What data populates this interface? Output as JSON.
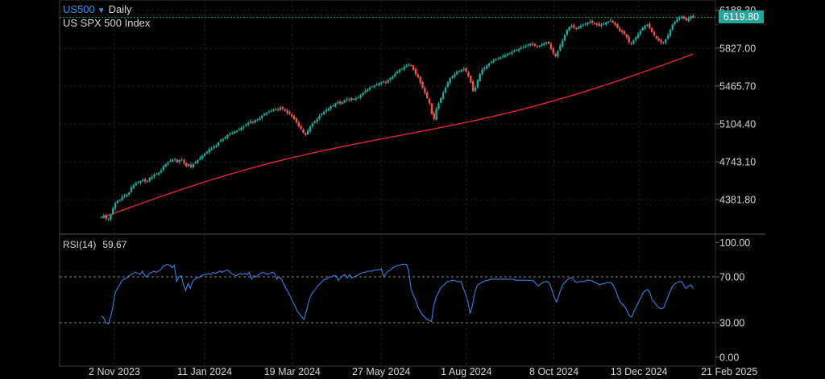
{
  "header": {
    "symbol": "US500",
    "timeframe": "Daily",
    "instrument_name": "US SPX 500 Index",
    "last_price": "6119.80"
  },
  "rsi_panel": {
    "label": "RSI(14)",
    "value": "59.67"
  },
  "colors": {
    "background": "#000000",
    "up": "#26a69a",
    "down": "#ef5350",
    "ma": "#e3262f",
    "rsi": "#3d7fe0",
    "symbol": "#3d8ef0"
  },
  "chart_data": [
    {
      "type": "candlestick",
      "title": "US SPX 500 Index",
      "y_tick_labels": [
        "6188.30",
        "5827.00",
        "5465.70",
        "5104.40",
        "4743.10",
        "4381.80"
      ],
      "ylim": [
        4240,
        6240
      ],
      "x_tick_labels": [
        "2 Nov 2023",
        "11 Jan 2024",
        "19 Mar 2024",
        "27 May 2024",
        "1 Aug 2024",
        "8 Oct 2024",
        "13 Dec 2024",
        "21 Feb 2025"
      ],
      "close_series": {
        "start": "2023-10-23",
        "end": "2025-01-24",
        "values": [
          4217,
          4230,
          4200,
          4195,
          4240,
          4300,
          4350,
          4370,
          4380,
          4410,
          4420,
          4430,
          4450,
          4500,
          4520,
          4540,
          4550,
          4560,
          4570,
          4555,
          4560,
          4590,
          4600,
          4620,
          4630,
          4640,
          4660,
          4700,
          4720,
          4740,
          4750,
          4760,
          4770,
          4740,
          4760,
          4765,
          4730,
          4700,
          4720,
          4690,
          4720,
          4740,
          4760,
          4780,
          4800,
          4820,
          4840,
          4860,
          4870,
          4890,
          4900,
          4930,
          4950,
          4960,
          4980,
          5000,
          5010,
          5020,
          5030,
          5040,
          5050,
          5070,
          5080,
          5100,
          5110,
          5130,
          5120,
          5140,
          5150,
          5160,
          5180,
          5200,
          5210,
          5220,
          5230,
          5240,
          5250,
          5240,
          5260,
          5250,
          5230,
          5210,
          5200,
          5180,
          5150,
          5120,
          5080,
          5060,
          5020,
          5000,
          5040,
          5080,
          5110,
          5130,
          5150,
          5180,
          5200,
          5220,
          5240,
          5250,
          5270,
          5280,
          5300,
          5310,
          5300,
          5310,
          5330,
          5340,
          5330,
          5350,
          5340,
          5350,
          5360,
          5380,
          5400,
          5420,
          5430,
          5450,
          5460,
          5470,
          5480,
          5490,
          5500,
          5510,
          5500,
          5520,
          5540,
          5560,
          5580,
          5600,
          5620,
          5630,
          5650,
          5660,
          5670,
          5660,
          5620,
          5580,
          5550,
          5500,
          5450,
          5400,
          5350,
          5300,
          5200,
          5150,
          5250,
          5300,
          5350,
          5400,
          5450,
          5500,
          5540,
          5560,
          5580,
          5600,
          5610,
          5620,
          5630,
          5600,
          5560,
          5500,
          5420,
          5450,
          5520,
          5580,
          5620,
          5640,
          5660,
          5680,
          5700,
          5710,
          5720,
          5730,
          5740,
          5750,
          5760,
          5770,
          5780,
          5790,
          5800,
          5810,
          5820,
          5830,
          5840,
          5850,
          5860,
          5870,
          5860,
          5850,
          5840,
          5850,
          5860,
          5870,
          5880,
          5870,
          5820,
          5780,
          5750,
          5800,
          5850,
          5900,
          5950,
          6000,
          6030,
          6040,
          6020,
          6010,
          6030,
          6040,
          6050,
          6060,
          6070,
          6080,
          6070,
          6060,
          6050,
          6040,
          6050,
          6060,
          6070,
          6080,
          6090,
          6070,
          6050,
          6020,
          5990,
          5980,
          5960,
          5930,
          5880,
          5870,
          5900,
          5930,
          5960,
          5990,
          6020,
          6040,
          6050,
          6020,
          5980,
          5950,
          5920,
          5900,
          5880,
          5880,
          5910,
          5950,
          6000,
          6050,
          6080,
          6100,
          6120,
          6130,
          6110,
          6090,
          6110,
          6130,
          6119.8
        ]
      },
      "overlay": {
        "name": "",
        "start": 4210,
        "end": 5770
      },
      "last_price_line": 6119.8
    },
    {
      "type": "line",
      "title": "RSI(14)",
      "current_value": 59.67,
      "y_tick_labels": [
        "100.00",
        "70.00",
        "30.00",
        "0.00"
      ],
      "ylim": [
        0,
        100
      ],
      "levels": [
        70,
        30
      ],
      "series": [
        {
          "name": "RSI(14)",
          "start": "2023-10-23",
          "end": "2025-01-24",
          "values": [
            36,
            34,
            30,
            29,
            35,
            44,
            56,
            60,
            63,
            67,
            68,
            69,
            71,
            72,
            73,
            74,
            73,
            72,
            75,
            71,
            70,
            73,
            74,
            75,
            74,
            75,
            76,
            79,
            80,
            81,
            80,
            78,
            80,
            66,
            70,
            71,
            63,
            58,
            64,
            60,
            66,
            68,
            69,
            70,
            71,
            72,
            72,
            73,
            72,
            74,
            73,
            74,
            75,
            74,
            75,
            76,
            75,
            73,
            72,
            71,
            72,
            73,
            72,
            73,
            72,
            74,
            68,
            71,
            70,
            72,
            73,
            74,
            73,
            72,
            73,
            74,
            73,
            68,
            70,
            68,
            64,
            60,
            57,
            53,
            48,
            45,
            40,
            38,
            35,
            33,
            40,
            48,
            54,
            57,
            59,
            62,
            64,
            66,
            68,
            68,
            70,
            70,
            71,
            71,
            67,
            69,
            71,
            72,
            69,
            72,
            69,
            70,
            71,
            72,
            73,
            74,
            74,
            75,
            75,
            75,
            76,
            76,
            76,
            77,
            70,
            73,
            75,
            76,
            78,
            79,
            80,
            80,
            81,
            81,
            81,
            75,
            60,
            54,
            50,
            44,
            40,
            37,
            35,
            33,
            32,
            31,
            45,
            52,
            56,
            60,
            62,
            64,
            66,
            66,
            67,
            67,
            66,
            66,
            66,
            60,
            55,
            48,
            38,
            45,
            56,
            62,
            64,
            65,
            66,
            67,
            67,
            68,
            68,
            68,
            68,
            68,
            68,
            68,
            68,
            68,
            68,
            68,
            67,
            67,
            67,
            67,
            67,
            67,
            67,
            67,
            66,
            64,
            62,
            64,
            65,
            66,
            66,
            64,
            58,
            52,
            48,
            54,
            60,
            64,
            66,
            68,
            69,
            69,
            66,
            65,
            66,
            66,
            66,
            67,
            67,
            67,
            66,
            65,
            64,
            63,
            64,
            64,
            65,
            65,
            65,
            62,
            58,
            52,
            48,
            46,
            44,
            40,
            36,
            35,
            40,
            44,
            48,
            52,
            56,
            58,
            59,
            56,
            50,
            48,
            45,
            43,
            42,
            43,
            48,
            53,
            58,
            62,
            64,
            65,
            66,
            66,
            62,
            60,
            62,
            63,
            59.67
          ]
        }
      ]
    }
  ]
}
